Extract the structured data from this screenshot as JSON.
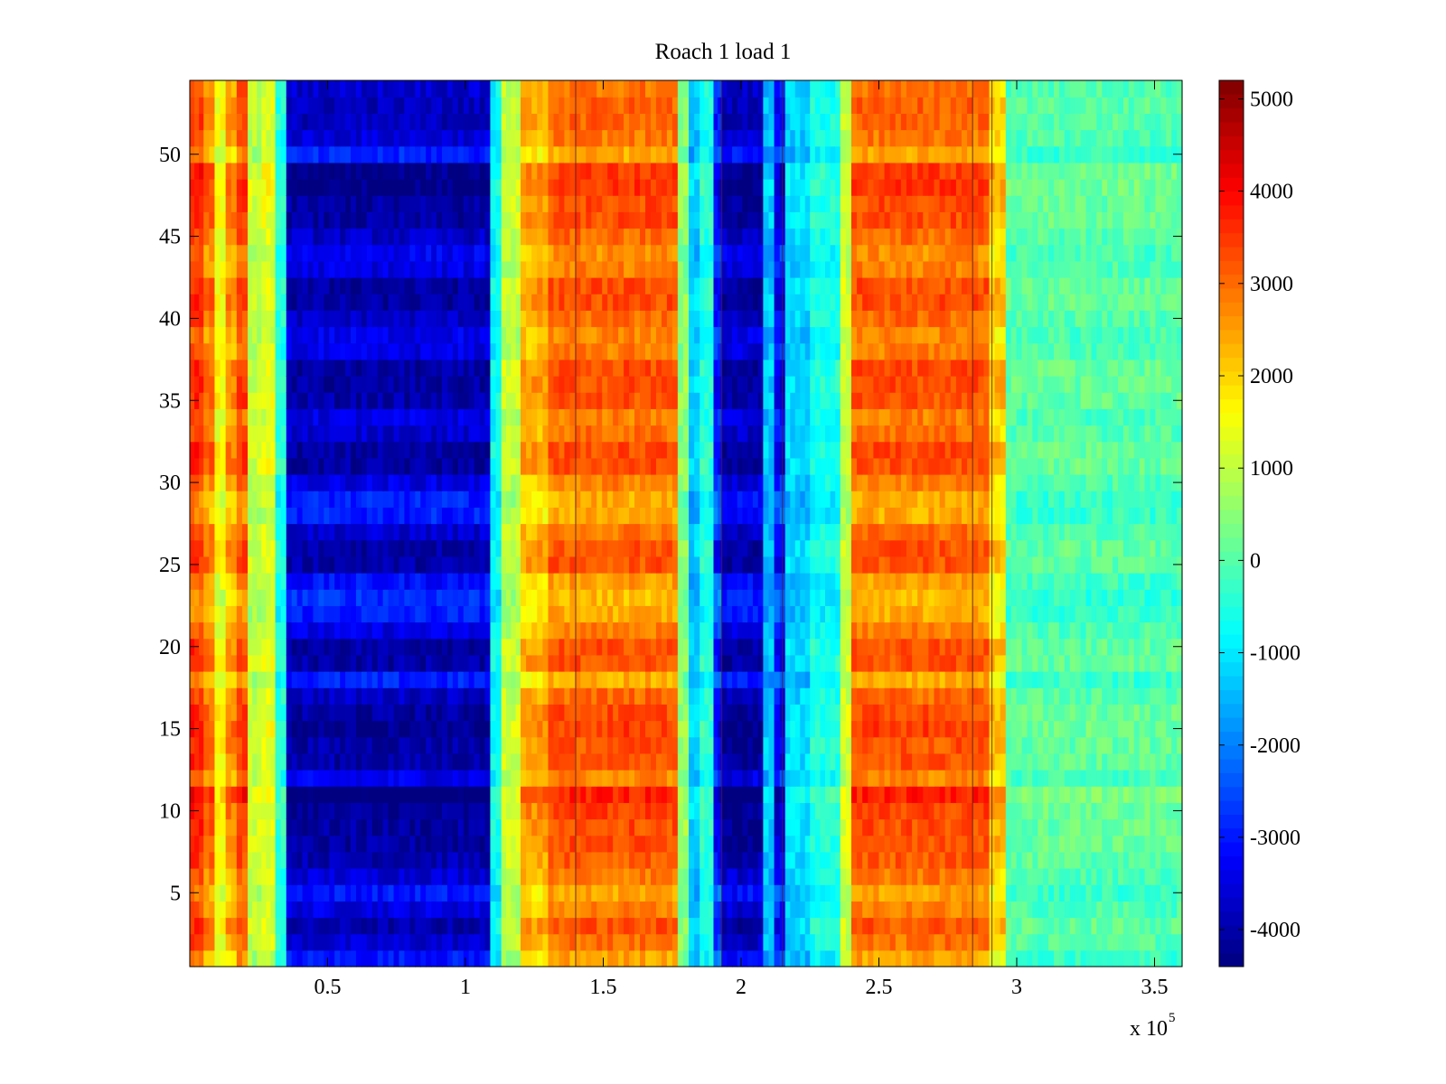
{
  "chart_data": {
    "type": "heatmap",
    "title": "Roach 1 load 1",
    "xlabel": "",
    "ylabel": "",
    "xlim": [
      0,
      360000
    ],
    "ylim": [
      0.5,
      54.5
    ],
    "x_exponent_label": "x 10",
    "x_exponent_power": "5",
    "x_ticks": [
      {
        "value": 50000,
        "label": "0.5"
      },
      {
        "value": 100000,
        "label": "1"
      },
      {
        "value": 150000,
        "label": "1.5"
      },
      {
        "value": 200000,
        "label": "2"
      },
      {
        "value": 250000,
        "label": "2.5"
      },
      {
        "value": 300000,
        "label": "3"
      },
      {
        "value": 350000,
        "label": "3.5"
      }
    ],
    "y_ticks": [
      {
        "value": 5,
        "label": "5"
      },
      {
        "value": 10,
        "label": "10"
      },
      {
        "value": 15,
        "label": "15"
      },
      {
        "value": 20,
        "label": "20"
      },
      {
        "value": 25,
        "label": "25"
      },
      {
        "value": 30,
        "label": "30"
      },
      {
        "value": 35,
        "label": "35"
      },
      {
        "value": 40,
        "label": "40"
      },
      {
        "value": 45,
        "label": "45"
      },
      {
        "value": 50,
        "label": "50"
      }
    ],
    "colorbar": {
      "colormap": "jet",
      "range": [
        -4400,
        5200
      ],
      "ticks": [
        {
          "value": 5000,
          "label": "5000"
        },
        {
          "value": 4000,
          "label": "4000"
        },
        {
          "value": 3000,
          "label": "3000"
        },
        {
          "value": 2000,
          "label": "2000"
        },
        {
          "value": 1000,
          "label": "1000"
        },
        {
          "value": 0,
          "label": "0"
        },
        {
          "value": -1000,
          "label": "-1000"
        },
        {
          "value": -2000,
          "label": "-2000"
        },
        {
          "value": -3000,
          "label": "-3000"
        },
        {
          "value": -4000,
          "label": "-4000"
        }
      ]
    },
    "rows": 54,
    "column_profile": [
      {
        "x_start": 0,
        "x_end": 5000,
        "value": 3000
      },
      {
        "x_start": 5000,
        "x_end": 9000,
        "value": 2400
      },
      {
        "x_start": 9000,
        "x_end": 13000,
        "value": 1300
      },
      {
        "x_start": 13000,
        "x_end": 17000,
        "value": 2100
      },
      {
        "x_start": 17000,
        "x_end": 21000,
        "value": 2800
      },
      {
        "x_start": 21000,
        "x_end": 26000,
        "value": 800
      },
      {
        "x_start": 26000,
        "x_end": 31000,
        "value": 1100
      },
      {
        "x_start": 31000,
        "x_end": 35000,
        "value": -700
      },
      {
        "x_start": 35000,
        "x_end": 109000,
        "value": -3200
      },
      {
        "x_start": 109000,
        "x_end": 113000,
        "value": -1000
      },
      {
        "x_start": 113000,
        "x_end": 120000,
        "value": 800
      },
      {
        "x_start": 120000,
        "x_end": 130000,
        "value": 1900
      },
      {
        "x_start": 130000,
        "x_end": 177000,
        "value": 2600
      },
      {
        "x_start": 177000,
        "x_end": 181000,
        "value": 300
      },
      {
        "x_start": 181000,
        "x_end": 185000,
        "value": -1500
      },
      {
        "x_start": 185000,
        "x_end": 190000,
        "value": -700
      },
      {
        "x_start": 190000,
        "x_end": 193000,
        "value": -2400
      },
      {
        "x_start": 193000,
        "x_end": 208000,
        "value": -3300
      },
      {
        "x_start": 208000,
        "x_end": 212000,
        "value": -1600
      },
      {
        "x_start": 212000,
        "x_end": 216000,
        "value": -2600
      },
      {
        "x_start": 216000,
        "x_end": 225000,
        "value": -1400
      },
      {
        "x_start": 225000,
        "x_end": 236000,
        "value": -800
      },
      {
        "x_start": 236000,
        "x_end": 240000,
        "value": 900
      },
      {
        "x_start": 240000,
        "x_end": 290000,
        "value": 2600
      },
      {
        "x_start": 290000,
        "x_end": 296000,
        "value": 1600
      },
      {
        "x_start": 296000,
        "x_end": 360000,
        "value": -200
      }
    ],
    "row_modulation": [
      -200,
      500,
      900,
      300,
      -200,
      400,
      800,
      1000,
      1000,
      200,
      700,
      200,
      900,
      900,
      300,
      100,
      -300,
      -300,
      900,
      900,
      300,
      -300,
      -500,
      -100,
      900,
      900,
      500,
      -300,
      -300,
      300,
      1000,
      1000,
      500,
      300,
      900,
      1000,
      1000,
      300,
      200,
      600,
      1000,
      1000,
      300,
      100,
      600,
      1000,
      1000,
      600,
      500,
      -300,
      400,
      700,
      700,
      500
    ],
    "row_stripe_highlights": [
      {
        "row_start": 10,
        "row_end": 11,
        "extra": 900
      },
      {
        "row_start": 15,
        "row_end": 17,
        "extra": 900
      },
      {
        "row_start": 48,
        "row_end": 49,
        "extra": 700
      }
    ],
    "vertical_lines": [
      140000,
      193000,
      215000,
      284000,
      291000
    ]
  }
}
